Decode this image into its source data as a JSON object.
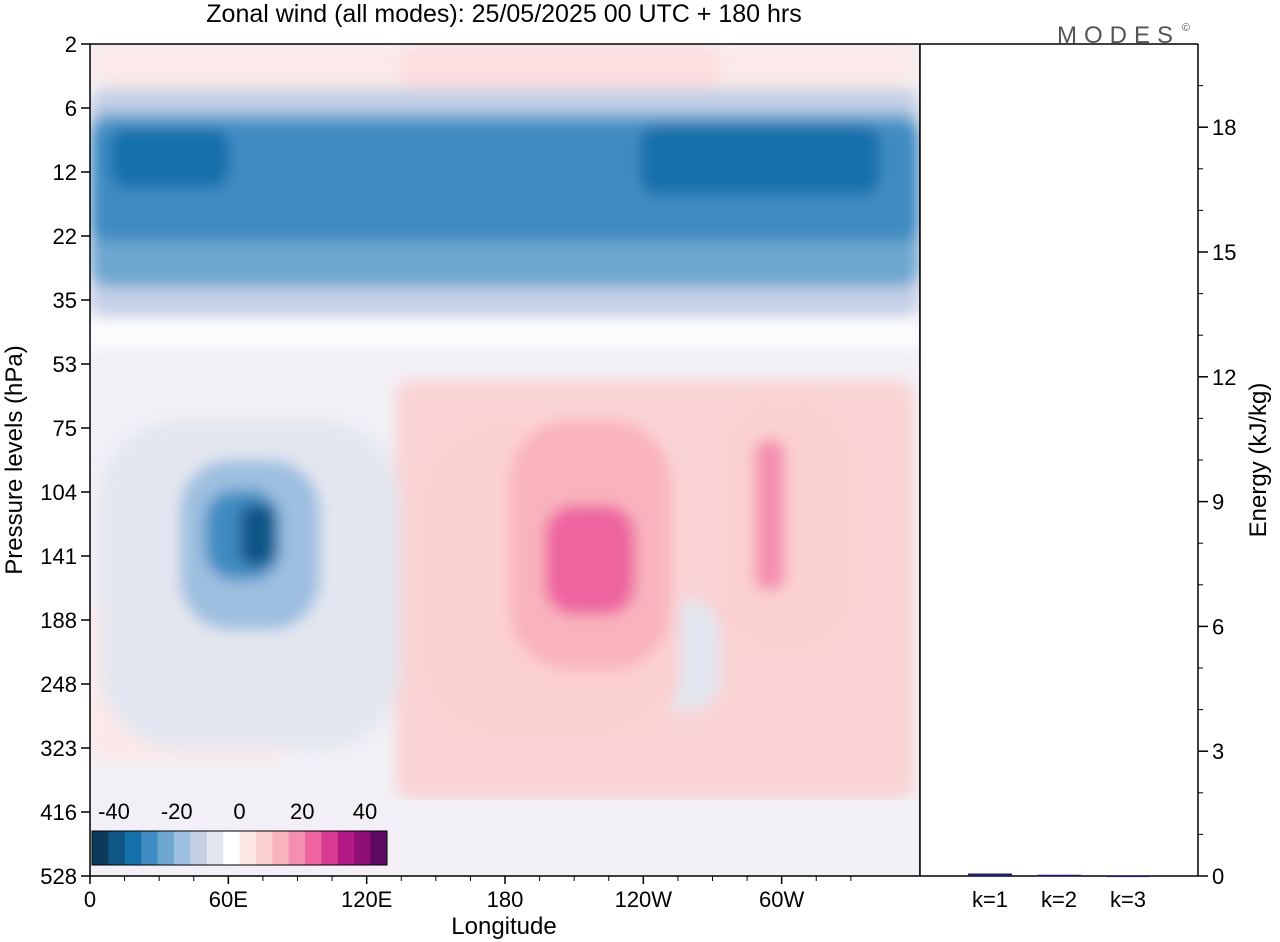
{
  "figure": {
    "title": "Zonal wind (all modes):  25/05/2025  00 UTC  + 180 hrs",
    "logo_text": "MODES",
    "logo_mark": "©"
  },
  "chart_data": [
    {
      "type": "heatmap",
      "title": "Zonal wind (all modes):  25/05/2025  00 UTC  + 180 hrs",
      "xlabel": "Longitude",
      "ylabel": "Pressure levels (hPa)",
      "x_ticks": [
        "0",
        "60E",
        "120E",
        "180",
        "120W",
        "60W"
      ],
      "x_tick_values": [
        0,
        60,
        120,
        180,
        240,
        300
      ],
      "xlim": [
        0,
        360
      ],
      "y_ticks": [
        "2",
        "6",
        "12",
        "22",
        "35",
        "53",
        "75",
        "104",
        "141",
        "188",
        "248",
        "323",
        "416",
        "528"
      ],
      "y_scale": "model levels (log-like), 2 hPa at top, 528 hPa at bottom",
      "colorbar": {
        "labels": [
          "-40",
          "-20",
          "0",
          "20",
          "40"
        ],
        "colors": [
          "#0c3a5c",
          "#0f5585",
          "#1570ab",
          "#3f8cc2",
          "#6ea7d0",
          "#9dbfe0",
          "#c5d0e6",
          "#e3e6f0",
          "#ffffff",
          "#fde8e6",
          "#fbd0d0",
          "#f9b3bd",
          "#f48fb0",
          "#ee65a0",
          "#d93b92",
          "#b41a84",
          "#8e0f76",
          "#5e0a64"
        ]
      },
      "features": [
        {
          "name": "stratospheric easterly band",
          "lon_range": [
            0,
            360
          ],
          "p_range": [
            6,
            35
          ],
          "value": -25
        },
        {
          "name": "easterly core",
          "lon": 70,
          "p": 141,
          "value": -30
        },
        {
          "name": "westerly core",
          "lon": 205,
          "p": 141,
          "value": 22
        },
        {
          "name": "westerly core",
          "lon": 290,
          "p": 141,
          "value": 15
        },
        {
          "name": "upper westerly",
          "lon": 230,
          "p": 2,
          "value": 15
        }
      ]
    },
    {
      "type": "bar",
      "title": "",
      "xlabel": "",
      "ylabel": "Energy (kJ/kg)",
      "categories": [
        "k=1",
        "k=2",
        "k=3"
      ],
      "values": [
        0.06,
        0.03,
        0.01
      ],
      "ylim": [
        0,
        20
      ],
      "y_ticks": [
        "0",
        "3",
        "6",
        "9",
        "12",
        "15",
        "18"
      ],
      "bar_color": "#1f1f66"
    }
  ]
}
